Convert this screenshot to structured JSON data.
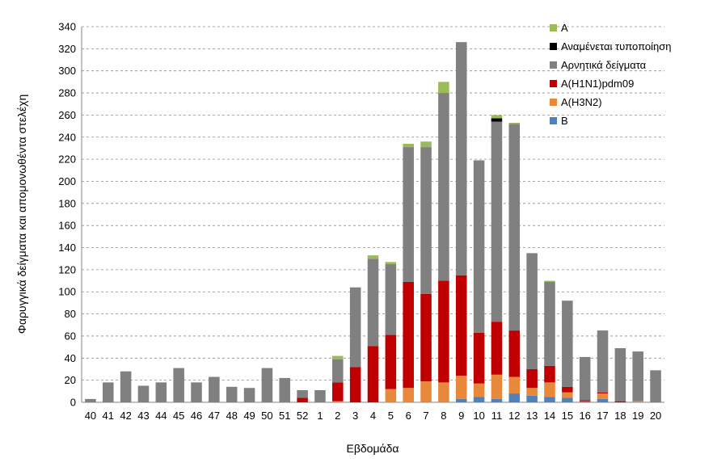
{
  "chart_data": {
    "type": "bar",
    "stacked": true,
    "xlabel": "Εβδομάδα",
    "ylabel": "Φαρυγγικά δείγματα και απομονωθέντα στελέχη",
    "ylim": [
      0,
      340
    ],
    "yticks": [
      0,
      20,
      40,
      60,
      80,
      100,
      120,
      140,
      160,
      180,
      200,
      220,
      240,
      260,
      280,
      300,
      320,
      340
    ],
    "grid": true,
    "legend_position": "top-right",
    "categories": [
      "40",
      "41",
      "42",
      "43",
      "44",
      "45",
      "46",
      "47",
      "48",
      "49",
      "50",
      "51",
      "52",
      "1",
      "2",
      "3",
      "4",
      "5",
      "6",
      "7",
      "8",
      "9",
      "10",
      "11",
      "12",
      "13",
      "14",
      "15",
      "16",
      "17",
      "18",
      "19",
      "20"
    ],
    "series": [
      {
        "name": "B",
        "color": "#4f81bd",
        "values": [
          0,
          0,
          0,
          0,
          0,
          0,
          0,
          0,
          0,
          0,
          0,
          0,
          0,
          0,
          0,
          0,
          0,
          0,
          0,
          0,
          0,
          3,
          5,
          3,
          8,
          6,
          5,
          4,
          1,
          3,
          0,
          0,
          0
        ]
      },
      {
        "name": "A(H3N2)",
        "color": "#e8883a",
        "values": [
          0,
          0,
          0,
          0,
          0,
          0,
          0,
          0,
          0,
          0,
          0,
          0,
          0,
          0,
          1,
          0,
          0,
          12,
          13,
          19,
          18,
          21,
          12,
          22,
          15,
          7,
          13,
          5,
          0,
          5,
          0,
          1,
          0
        ]
      },
      {
        "name": "A(H1N1)pdm09",
        "color": "#c00000",
        "values": [
          0,
          0,
          0,
          0,
          0,
          0,
          0,
          0,
          0,
          0,
          0,
          0,
          4,
          0,
          17,
          32,
          51,
          49,
          96,
          79,
          92,
          91,
          46,
          48,
          42,
          17,
          15,
          5,
          1,
          1,
          1,
          0,
          0
        ]
      },
      {
        "name": "Αρνητικά δείγματα",
        "color": "#808080",
        "values": [
          3,
          18,
          28,
          15,
          18,
          31,
          18,
          23,
          14,
          13,
          31,
          22,
          7,
          11,
          21,
          72,
          79,
          64,
          122,
          133,
          170,
          211,
          156,
          181,
          187,
          105,
          76,
          78,
          39,
          56,
          48,
          45,
          29
        ]
      },
      {
        "name": "Αναμένεται τυποποίηση",
        "color": "#000000",
        "values": [
          0,
          0,
          0,
          0,
          0,
          0,
          0,
          0,
          0,
          0,
          0,
          0,
          0,
          0,
          0,
          0,
          0,
          0,
          0,
          0,
          0,
          0,
          0,
          3,
          0,
          0,
          0,
          0,
          0,
          0,
          0,
          0,
          0
        ]
      },
      {
        "name": "A",
        "color": "#9bbb59",
        "values": [
          0,
          0,
          0,
          0,
          0,
          0,
          0,
          0,
          0,
          0,
          0,
          0,
          0,
          0,
          3,
          0,
          3,
          2,
          3,
          5,
          10,
          0,
          0,
          3,
          1,
          0,
          1,
          0,
          0,
          0,
          0,
          0,
          0
        ]
      }
    ],
    "legend_order": [
      "A",
      "Αναμένεται τυποποίηση",
      "Αρνητικά δείγματα",
      "A(H1N1)pdm09",
      "A(H3N2)",
      "B"
    ]
  }
}
